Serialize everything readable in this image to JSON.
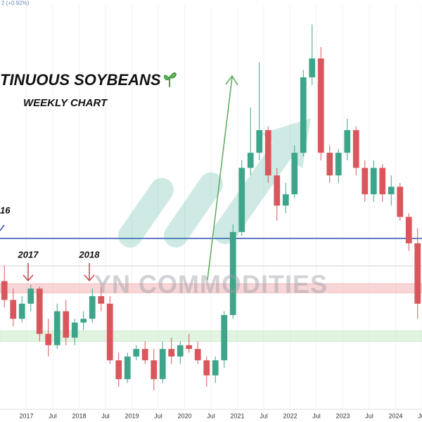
{
  "chart_data": {
    "type": "candlestick",
    "title": "TINUOUS SOYBEANS",
    "subtitle": "WEEKLY CHART",
    "watermark": "YN COMMODITIES",
    "price_change": "2 (+0.92%)",
    "annotations": [
      "16",
      "2017",
      "2018"
    ],
    "x": [
      "2016-07",
      "2016-09",
      "2016-11",
      "2017-01",
      "2017-03",
      "2017-05",
      "2017-07",
      "2017-09",
      "2017-11",
      "2018-01",
      "2018-03",
      "2018-05",
      "2018-07",
      "2018-09",
      "2018-11",
      "2019-01",
      "2019-03",
      "2019-05",
      "2019-07",
      "2019-09",
      "2019-11",
      "2020-01",
      "2020-03",
      "2020-05",
      "2020-07",
      "2020-09",
      "2020-11",
      "2021-01",
      "2021-03",
      "2021-05",
      "2021-07",
      "2021-09",
      "2021-11",
      "2022-01",
      "2022-03",
      "2022-05",
      "2022-07",
      "2022-09",
      "2022-11",
      "2023-01",
      "2023-03",
      "2023-05",
      "2023-07",
      "2023-09",
      "2023-11",
      "2024-01",
      "2024-03",
      "2024-05"
    ],
    "open": [
      1100,
      1050,
      1000,
      1040,
      1080,
      960,
      930,
      1020,
      950,
      990,
      1000,
      1060,
      1040,
      890,
      840,
      900,
      920,
      890,
      840,
      920,
      900,
      930,
      920,
      890,
      850,
      890,
      1010,
      1230,
      1400,
      1440,
      1500,
      1380,
      1300,
      1330,
      1440,
      1640,
      1690,
      1440,
      1380,
      1440,
      1500,
      1400,
      1330,
      1400,
      1330,
      1350,
      1270,
      1200
    ],
    "high": [
      1140,
      1080,
      1060,
      1090,
      1085,
      1000,
      1040,
      1050,
      1000,
      1020,
      1080,
      1085,
      1060,
      910,
      910,
      930,
      940,
      920,
      940,
      950,
      940,
      960,
      940,
      900,
      900,
      1020,
      1250,
      1420,
      1560,
      1680,
      1510,
      1400,
      1360,
      1460,
      1660,
      1780,
      1720,
      1460,
      1450,
      1530,
      1510,
      1420,
      1420,
      1410,
      1380,
      1360,
      1280,
      1240
    ],
    "low": [
      1030,
      980,
      990,
      1020,
      940,
      900,
      920,
      930,
      930,
      970,
      990,
      1020,
      880,
      820,
      830,
      890,
      880,
      810,
      830,
      880,
      880,
      910,
      880,
      820,
      830,
      870,
      1000,
      1220,
      1380,
      1420,
      1360,
      1260,
      1280,
      1320,
      1430,
      1620,
      1420,
      1360,
      1360,
      1420,
      1380,
      1310,
      1310,
      1310,
      1300,
      1260,
      1180,
      1000
    ],
    "close": [
      1050,
      1000,
      1040,
      1080,
      960,
      930,
      1020,
      950,
      990,
      1000,
      1060,
      1040,
      890,
      840,
      900,
      920,
      890,
      840,
      920,
      900,
      930,
      920,
      890,
      850,
      890,
      1010,
      1230,
      1400,
      1440,
      1500,
      1380,
      1300,
      1330,
      1440,
      1640,
      1690,
      1440,
      1380,
      1440,
      1500,
      1400,
      1330,
      1400,
      1330,
      1350,
      1270,
      1200,
      1040
    ],
    "up_color": "#3fa58a",
    "down_color": "#d9575c",
    "xlim": [
      "2016-07",
      "2024-07"
    ],
    "xticks": [
      {
        "value": "2017-01",
        "label": "2017"
      },
      {
        "value": "2017-07",
        "label": "Jul"
      },
      {
        "value": "2018-01",
        "label": "2018"
      },
      {
        "value": "2018-07",
        "label": "Jul"
      },
      {
        "value": "2019-01",
        "label": "2019"
      },
      {
        "value": "2019-07",
        "label": "Jul"
      },
      {
        "value": "2020-01",
        "label": "2020"
      },
      {
        "value": "2020-07",
        "label": "Jul"
      },
      {
        "value": "2021-01",
        "label": "2021"
      },
      {
        "value": "2021-07",
        "label": "Jul"
      },
      {
        "value": "2022-01",
        "label": "2022"
      },
      {
        "value": "2022-07",
        "label": "Jul"
      },
      {
        "value": "2023-01",
        "label": "2023"
      },
      {
        "value": "2023-07",
        "label": "Jul"
      },
      {
        "value": "2024-01",
        "label": "2024"
      },
      {
        "value": "2024-07",
        "label": "Jul"
      }
    ],
    "ylim": [
      760,
      1830
    ],
    "grid": true,
    "levels": [
      {
        "value": 1213,
        "color": "#2c4fb0"
      },
      {
        "value": 1140,
        "color": "#cfcfcf"
      }
    ],
    "zones": [
      {
        "range": [
          1069,
          1093
        ],
        "color": "#f3b9bb"
      },
      {
        "range": [
          940,
          968
        ],
        "color": "#cdeccd"
      }
    ]
  }
}
